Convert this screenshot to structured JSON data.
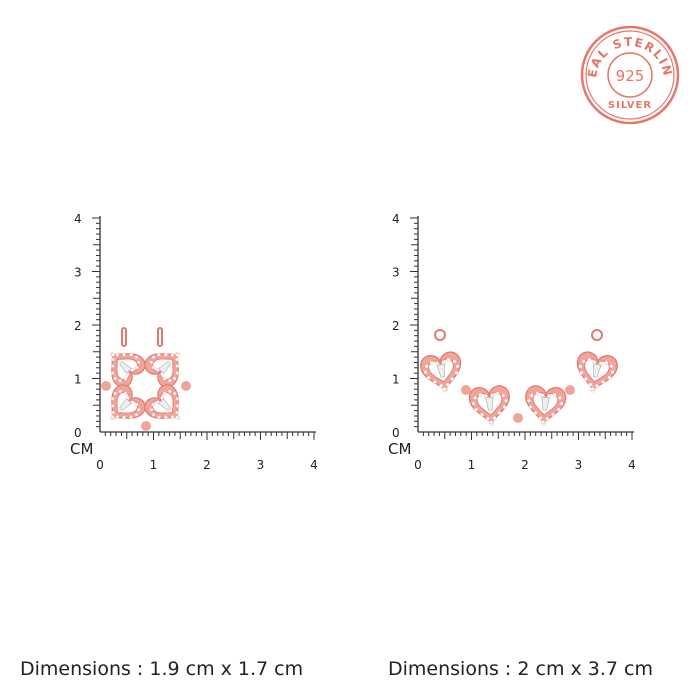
{
  "badge": {
    "top_text": "REAL STERLING",
    "center_text": "925",
    "bottom_text": "SILVER",
    "color": "#e8766a"
  },
  "rulers": [
    {
      "unit": "CM",
      "x_ticks": [
        "0",
        "1",
        "2",
        "3",
        "4"
      ],
      "y_ticks": [
        "0",
        "1",
        "2",
        "3",
        "4"
      ]
    },
    {
      "unit": "CM",
      "x_ticks": [
        "0",
        "1",
        "2",
        "3",
        "4"
      ],
      "y_ticks": [
        "0",
        "1",
        "2",
        "3",
        "4"
      ]
    }
  ],
  "products": [
    {
      "name": "four-heart clover pendant",
      "dimensions": "Dimensions : 1.9 cm x 1.7 cm"
    },
    {
      "name": "four-heart necklace pendant",
      "dimensions": "Dimensions : 2 cm x 3.7 cm"
    }
  ],
  "colors": {
    "rose_gold": "#f0a49a",
    "rose_gold_dark": "#e07a6e",
    "ruler": "#333333"
  }
}
